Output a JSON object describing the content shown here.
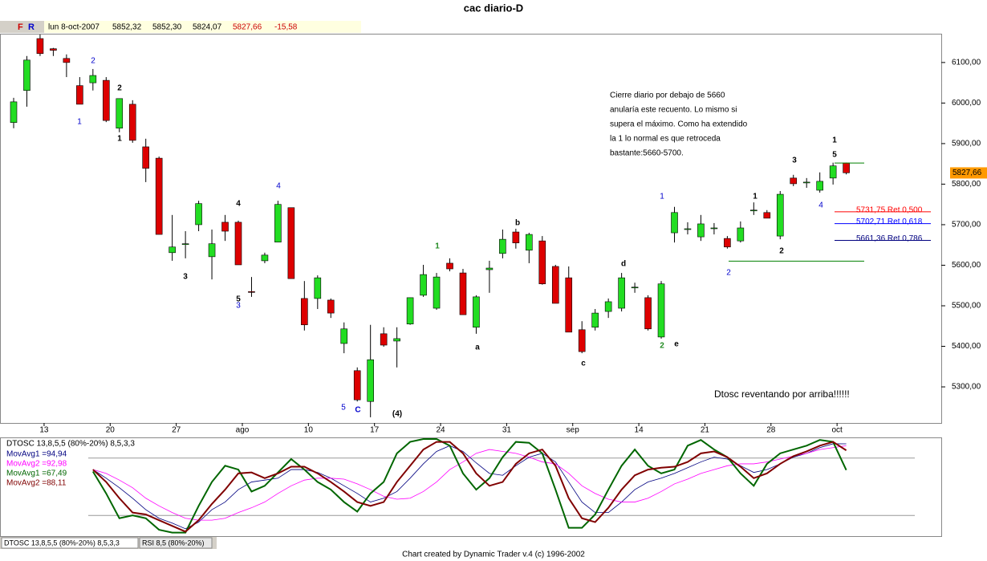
{
  "header": {
    "title": "cac diario-D",
    "buttons": [
      "F",
      "R"
    ],
    "info": [
      "lun 8-oct-2007",
      "5852,32",
      "5852,30",
      "5824,07",
      "5827,66",
      "-15,58"
    ]
  },
  "chart_data": [
    {
      "type": "candlestick",
      "categories": [
        null,
        null,
        "13",
        null,
        null,
        null,
        null,
        "20",
        null,
        null,
        null,
        null,
        "27",
        null,
        null,
        null,
        null,
        "ago",
        null,
        null,
        null,
        null,
        "10",
        null,
        null,
        null,
        null,
        "17",
        null,
        null,
        null,
        null,
        "24",
        null,
        null,
        null,
        null,
        "31",
        null,
        null,
        null,
        null,
        "sep",
        null,
        null,
        null,
        null,
        "14",
        null,
        null,
        null,
        null,
        "21",
        null,
        null,
        null,
        null,
        "28",
        null,
        null,
        null,
        null,
        "oct",
        null
      ],
      "open": [
        5952,
        6031,
        6159,
        6134,
        6110,
        6043,
        6050,
        6056,
        5938,
        5997,
        5892,
        5864,
        5631,
        5651,
        5700,
        5621,
        5706,
        5706,
        5535,
        5611,
        5657,
        5742,
        5518,
        5518,
        5514,
        5407,
        5340,
        5264,
        5431,
        5413,
        5455,
        5526,
        5494,
        5605,
        5581,
        5447,
        5589,
        5629,
        5682,
        5637,
        5660,
        5597,
        5569,
        5441,
        5447,
        5486,
        5494,
        5545,
        5520,
        5423,
        5680,
        5690,
        5670,
        5692,
        5666,
        5660,
        5736,
        5730,
        5672,
        5815,
        5805,
        5785,
        5815,
        5852
      ],
      "high": [
        6013,
        6116,
        6169,
        6136,
        6120,
        6064,
        6084,
        6064,
        6011,
        6007,
        5912,
        5868,
        5724,
        5684,
        5759,
        5688,
        5724,
        5710,
        5571,
        5631,
        5759,
        5742,
        5561,
        5575,
        5518,
        5459,
        5348,
        5453,
        5447,
        5447,
        5520,
        5601,
        5581,
        5617,
        5591,
        5526,
        5611,
        5688,
        5690,
        5680,
        5672,
        5601,
        5597,
        5462,
        5492,
        5518,
        5581,
        5557,
        5526,
        5561,
        5744,
        5706,
        5724,
        5704,
        5672,
        5708,
        5755,
        5736,
        5783,
        5823,
        5815,
        5829,
        5853,
        5853
      ],
      "low": [
        5938,
        5991,
        6116,
        6116,
        6064,
        5997,
        6031,
        5953,
        5928,
        5902,
        5805,
        5676,
        5611,
        5617,
        5684,
        5565,
        5660,
        5601,
        5522,
        5605,
        5657,
        5567,
        5439,
        5492,
        5470,
        5383,
        5264,
        5225,
        5399,
        5348,
        5453,
        5522,
        5490,
        5585,
        5478,
        5431,
        5532,
        5617,
        5641,
        5605,
        5552,
        5506,
        5435,
        5383,
        5439,
        5470,
        5486,
        5532,
        5439,
        5419,
        5656,
        5676,
        5660,
        5676,
        5641,
        5656,
        5724,
        5716,
        5664,
        5795,
        5791,
        5779,
        5799,
        5824
      ],
      "close": [
        6003,
        6106,
        6122,
        6130,
        6100,
        5997,
        6068,
        5957,
        6011,
        5908,
        5839,
        5676,
        5645,
        5653,
        5752,
        5653,
        5684,
        5601,
        5533,
        5625,
        5750,
        5567,
        5453,
        5569,
        5482,
        5443,
        5268,
        5367,
        5403,
        5419,
        5520,
        5577,
        5571,
        5591,
        5478,
        5522,
        5593,
        5664,
        5655,
        5676,
        5554,
        5506,
        5435,
        5387,
        5482,
        5510,
        5569,
        5546,
        5443,
        5554,
        5730,
        5690,
        5702,
        5692,
        5645,
        5692,
        5736,
        5716,
        5775,
        5801,
        5805,
        5807,
        5845,
        5828
      ],
      "up_color": "#22dd22",
      "down_color": "#dd0000",
      "ylim": [
        5211,
        6171
      ],
      "yticks": [
        {
          "value": 6100,
          "label": "6100,00"
        },
        {
          "value": 6000,
          "label": "6000,00"
        },
        {
          "value": 5900,
          "label": "5900,00"
        },
        {
          "value": 5800,
          "label": "5800,00"
        },
        {
          "value": 5700,
          "label": "5700,00"
        },
        {
          "value": 5600,
          "label": "5600,00"
        },
        {
          "value": 5500,
          "label": "5500,00"
        },
        {
          "value": 5400,
          "label": "5400,00"
        },
        {
          "value": 5300,
          "label": "5300,00"
        }
      ],
      "last_price": {
        "value": 5827.66,
        "label": "5827,66",
        "color": "#ff9900"
      },
      "levels": [
        {
          "value": 5731.75,
          "label": "5731,75 Ret 0,500",
          "color": "#ff0000"
        },
        {
          "value": 5702.71,
          "label": "5702,71 Ret 0,618",
          "color": "#0000ff"
        },
        {
          "value": 5661.36,
          "label": "5661,36 Ret 0,786",
          "color": "#000080"
        }
      ],
      "hlines": [
        {
          "value": 5852,
          "color": "#008000"
        },
        {
          "value": 5610,
          "color": "#008000"
        }
      ]
    },
    {
      "type": "line",
      "title": "DTOSC 13,8,5,5 (80%-20%) 8,5,3,3",
      "ylim": [
        0,
        100
      ],
      "levels": [
        80,
        20
      ],
      "series": [
        {
          "name": "MovAvg1 =94,94",
          "color": "#000080",
          "width": 0.8,
          "values": [
            null,
            null,
            null,
            null,
            null,
            null,
            68,
            59,
            49,
            38,
            26,
            17,
            12,
            6,
            13,
            26,
            34,
            47,
            55,
            57,
            59,
            68,
            68,
            65,
            59,
            51,
            43,
            34,
            38,
            45,
            59,
            74,
            87,
            93,
            87,
            75,
            64,
            62,
            72,
            81,
            85,
            76,
            55,
            34,
            23,
            23,
            34,
            47,
            55,
            59,
            64,
            70,
            76,
            81,
            79,
            72,
            65,
            68,
            74,
            81,
            85,
            91,
            95,
            94.94
          ]
        },
        {
          "name": "MovAvg2 =92,98",
          "color": "#ff00ff",
          "width": 0.8,
          "values": [
            null,
            null,
            null,
            null,
            null,
            null,
            68,
            64,
            57,
            49,
            38,
            30,
            23,
            17,
            15,
            15,
            17,
            23,
            28,
            34,
            43,
            51,
            57,
            59,
            59,
            58,
            53,
            47,
            40,
            37,
            38,
            45,
            55,
            68,
            76,
            85,
            89,
            87,
            85,
            81,
            76,
            74,
            64,
            51,
            43,
            37,
            34,
            34,
            38,
            45,
            53,
            58,
            64,
            68,
            72,
            74,
            74,
            76,
            79,
            82,
            85,
            89,
            91,
            92.98
          ]
        },
        {
          "name": "MovAvg1 =67,49",
          "color": "#006600",
          "width": 2,
          "values": [
            null,
            null,
            null,
            null,
            null,
            null,
            66,
            43,
            17,
            20,
            17,
            5,
            2,
            2,
            30,
            55,
            72,
            68,
            45,
            51,
            65,
            79,
            68,
            55,
            47,
            34,
            24,
            43,
            55,
            85,
            97,
            100,
            100,
            93,
            64,
            47,
            59,
            81,
            97,
            96,
            85,
            47,
            7,
            7,
            21,
            47,
            72,
            89,
            72,
            64,
            68,
            93,
            99,
            89,
            81,
            64,
            51,
            74,
            85,
            89,
            93,
            99,
            97,
            67.49
          ]
        },
        {
          "name": "MovAvg2 =88,11",
          "color": "#800000",
          "width": 2,
          "values": [
            null,
            null,
            null,
            null,
            null,
            null,
            68,
            55,
            38,
            23,
            21,
            15,
            9,
            3,
            15,
            32,
            47,
            64,
            65,
            59,
            64,
            71,
            71,
            64,
            55,
            45,
            34,
            30,
            34,
            55,
            72,
            89,
            97,
            97,
            85,
            64,
            51,
            55,
            74,
            85,
            89,
            72,
            38,
            17,
            13,
            28,
            47,
            62,
            68,
            70,
            71,
            76,
            85,
            87,
            81,
            71,
            59,
            64,
            74,
            82,
            87,
            93,
            97,
            88.11
          ]
        }
      ]
    }
  ],
  "annotations": [
    {
      "text": "2",
      "color": "#0000cc"
    },
    {
      "text": "1",
      "color": "#0000cc"
    },
    {
      "text": "2",
      "color": "#000000"
    },
    {
      "text": "1",
      "color": "#000000"
    },
    {
      "text": "4",
      "color": "#000000"
    },
    {
      "text": "3",
      "color": "#000000"
    },
    {
      "text": "5",
      "color": "#000000"
    },
    {
      "text": "3",
      "color": "#0000cc"
    },
    {
      "text": "4",
      "color": "#0000cc"
    },
    {
      "text": "5",
      "color": "#0000cc"
    },
    {
      "text": "C",
      "color": "#0000cc"
    },
    {
      "text": "(4)",
      "color": "#000000"
    },
    {
      "text": "1",
      "color": "#228b22"
    },
    {
      "text": "b",
      "color": "#000000"
    },
    {
      "text": "a",
      "color": "#000000"
    },
    {
      "text": "c",
      "color": "#000000"
    },
    {
      "text": "d",
      "color": "#000000"
    },
    {
      "text": "2",
      "color": "#228b22"
    },
    {
      "text": "e",
      "color": "#000000"
    },
    {
      "text": "1",
      "color": "#0000cc"
    },
    {
      "text": "2",
      "color": "#0000cc"
    },
    {
      "text": "1",
      "color": "#000000"
    },
    {
      "text": "2",
      "color": "#000000"
    },
    {
      "text": "3",
      "color": "#000000"
    },
    {
      "text": "4",
      "color": "#0000cc"
    },
    {
      "text": "5",
      "color": "#000000"
    },
    {
      "text": "1",
      "color": "#000000"
    }
  ],
  "note": [
    "Cierre diario por debajo de 5660",
    "anularía este recuento. Lo mismo si",
    "supera el máximo. Como ha extendido",
    "la 1 lo normal es que retroceda",
    "bastante:5660-5700."
  ],
  "comment": "Dtosc reventando por arriba!!!!!!",
  "tabs": [
    "DTOSC 13,8,5,5 (80%-20%) 8,5,3,3",
    "RSI 8,5 (80%-20%)"
  ],
  "footer": "Chart created by Dynamic Trader v.4  (c)  1996-2002"
}
